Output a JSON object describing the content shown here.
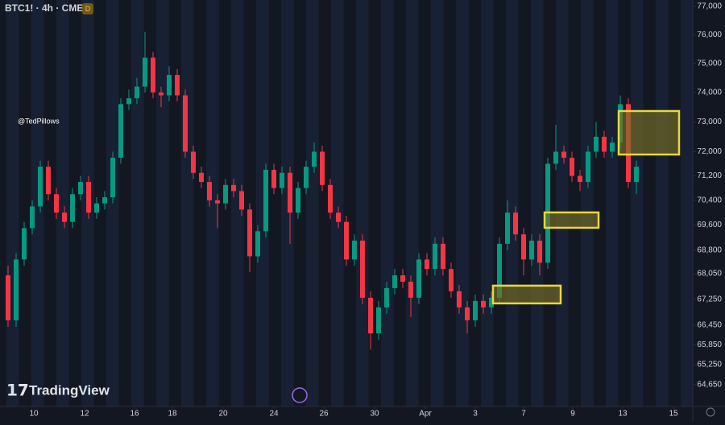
{
  "header": {
    "symbol": "BTC1! · 4h · CME",
    "badge": "D",
    "watermark": "@TedPillows",
    "logo": "TradingView"
  },
  "chart_data": {
    "type": "candlestick",
    "log_scale": true,
    "up_color": "#089981",
    "down_color": "#f23645",
    "ylim": [
      64000,
      77230
    ],
    "yticks": [
      {
        "value": 77000,
        "label": "77,000"
      },
      {
        "value": 76000,
        "label": "76,000"
      },
      {
        "value": 75000,
        "label": "75,000"
      },
      {
        "value": 74000,
        "label": "74,000"
      },
      {
        "value": 73000,
        "label": "73,000"
      },
      {
        "value": 72000,
        "label": "72,000"
      },
      {
        "value": 71200,
        "label": "71,200"
      },
      {
        "value": 70400,
        "label": "70,400"
      },
      {
        "value": 69600,
        "label": "69,600"
      },
      {
        "value": 68800,
        "label": "68,800"
      },
      {
        "value": 68050,
        "label": "68,050"
      },
      {
        "value": 67250,
        "label": "67,250"
      },
      {
        "value": 66450,
        "label": "66,450"
      },
      {
        "value": 65850,
        "label": "65,850"
      },
      {
        "value": 65250,
        "label": "65,250"
      },
      {
        "value": 64650,
        "label": "64,650"
      }
    ],
    "xlim": [
      0,
      172
    ],
    "xticks": [
      {
        "value": 8.4,
        "label": "10"
      },
      {
        "value": 21,
        "label": "12"
      },
      {
        "value": 33.4,
        "label": "16"
      },
      {
        "value": 42.8,
        "label": "18"
      },
      {
        "value": 55.4,
        "label": "20"
      },
      {
        "value": 68,
        "label": "24"
      },
      {
        "value": 80.4,
        "label": "26"
      },
      {
        "value": 93,
        "label": "30"
      },
      {
        "value": 105.6,
        "label": "Apr"
      },
      {
        "value": 118,
        "label": "3"
      },
      {
        "value": 130,
        "label": "7"
      },
      {
        "value": 142.2,
        "label": "9"
      },
      {
        "value": 154.6,
        "label": "13"
      },
      {
        "value": 167.2,
        "label": "15"
      }
    ],
    "x": [
      2,
      4,
      6,
      8,
      10,
      12,
      14,
      16,
      18,
      20,
      22,
      24,
      26,
      28,
      30,
      32,
      34,
      36,
      38,
      40,
      42,
      44,
      46,
      48,
      50,
      52,
      54,
      56,
      58,
      60,
      62,
      64,
      66,
      68,
      70,
      72,
      74,
      76,
      78,
      80,
      82,
      84,
      86,
      88,
      90,
      92,
      94,
      96,
      98,
      100,
      102,
      104,
      106,
      108,
      110,
      112,
      114,
      116,
      118,
      120,
      122,
      124,
      126,
      128,
      130,
      132,
      134,
      136,
      138,
      140,
      142,
      144,
      146,
      148,
      150,
      152,
      154,
      156,
      158
    ],
    "candles": [
      [
        68000,
        68300,
        66400,
        66600
      ],
      [
        66600,
        68700,
        66400,
        68500
      ],
      [
        68500,
        69700,
        68300,
        69500
      ],
      [
        69500,
        70400,
        69300,
        70200
      ],
      [
        70200,
        71700,
        70000,
        71500
      ],
      [
        71500,
        71700,
        70400,
        70600
      ],
      [
        70600,
        70800,
        69800,
        70000
      ],
      [
        70000,
        70200,
        69500,
        69700
      ],
      [
        69700,
        70800,
        69500,
        70600
      ],
      [
        70600,
        71200,
        70400,
        71000
      ],
      [
        71000,
        71200,
        69800,
        70000
      ],
      [
        70000,
        70500,
        69800,
        70300
      ],
      [
        70300,
        70700,
        70100,
        70500
      ],
      [
        70500,
        72000,
        70300,
        71800
      ],
      [
        71800,
        73800,
        71600,
        73600
      ],
      [
        73600,
        74100,
        73400,
        73800
      ],
      [
        73800,
        74500,
        73600,
        74200
      ],
      [
        74200,
        76100,
        74000,
        75200
      ],
      [
        75200,
        75400,
        73800,
        74000
      ],
      [
        74000,
        74200,
        73500,
        73900
      ],
      [
        73900,
        74900,
        73700,
        74600
      ],
      [
        74600,
        74800,
        73700,
        73900
      ],
      [
        73900,
        74100,
        71800,
        72000
      ],
      [
        72000,
        72200,
        71100,
        71300
      ],
      [
        71300,
        71500,
        70800,
        71000
      ],
      [
        71000,
        71200,
        70200,
        70400
      ],
      [
        70400,
        70600,
        69500,
        70300
      ],
      [
        70300,
        71100,
        70100,
        70900
      ],
      [
        70900,
        71100,
        70500,
        70700
      ],
      [
        70700,
        70900,
        69900,
        70100
      ],
      [
        70100,
        70300,
        68100,
        68600
      ],
      [
        68600,
        69600,
        68400,
        69400
      ],
      [
        69400,
        71600,
        69200,
        71400
      ],
      [
        71400,
        71600,
        70600,
        70800
      ],
      [
        70800,
        71500,
        70600,
        71300
      ],
      [
        71300,
        71500,
        69000,
        70000
      ],
      [
        70000,
        71000,
        69800,
        70800
      ],
      [
        70800,
        71700,
        70600,
        71500
      ],
      [
        71500,
        72300,
        71300,
        72000
      ],
      [
        72000,
        72200,
        70700,
        70900
      ],
      [
        70900,
        71100,
        69800,
        70000
      ],
      [
        70000,
        70200,
        69500,
        69700
      ],
      [
        69700,
        69900,
        68300,
        68500
      ],
      [
        68500,
        69300,
        68300,
        69100
      ],
      [
        69100,
        69300,
        67100,
        67300
      ],
      [
        67300,
        67500,
        65700,
        66200
      ],
      [
        66200,
        67200,
        66000,
        67000
      ],
      [
        67000,
        67800,
        66800,
        67600
      ],
      [
        67600,
        68200,
        67400,
        68000
      ],
      [
        68000,
        68200,
        67600,
        67800
      ],
      [
        67800,
        68000,
        66700,
        67300
      ],
      [
        67300,
        68700,
        67100,
        68500
      ],
      [
        68500,
        68700,
        68000,
        68200
      ],
      [
        68200,
        69200,
        68000,
        69000
      ],
      [
        69000,
        69200,
        68000,
        68200
      ],
      [
        68200,
        68400,
        67300,
        67500
      ],
      [
        67500,
        67700,
        66800,
        67000
      ],
      [
        67000,
        67200,
        66200,
        66600
      ],
      [
        66600,
        67400,
        66400,
        67200
      ],
      [
        67200,
        67400,
        66800,
        67000
      ],
      [
        67000,
        67500,
        66800,
        67300
      ],
      [
        67300,
        69200,
        67100,
        69000
      ],
      [
        69000,
        70400,
        68800,
        70000
      ],
      [
        70000,
        70200,
        69100,
        69300
      ],
      [
        69300,
        69500,
        68000,
        68500
      ],
      [
        68500,
        69300,
        68300,
        69100
      ],
      [
        69100,
        69300,
        68000,
        68400
      ],
      [
        68400,
        71800,
        68200,
        71600
      ],
      [
        71600,
        72900,
        71400,
        72000
      ],
      [
        72000,
        72200,
        71600,
        71800
      ],
      [
        71800,
        72000,
        71000,
        71200
      ],
      [
        71200,
        71400,
        70700,
        71000
      ],
      [
        71000,
        72200,
        70800,
        72000
      ],
      [
        72000,
        73000,
        71800,
        72500
      ],
      [
        72500,
        72700,
        71800,
        72000
      ],
      [
        72000,
        72500,
        71800,
        72300
      ],
      [
        72300,
        73900,
        72100,
        73600
      ],
      [
        73600,
        73800,
        70800,
        71000
      ],
      [
        71000,
        71700,
        70600,
        71500
      ]
    ],
    "zones_color": "#e8d838",
    "zones": [
      {
        "x": [
          153.6,
          168.6
        ],
        "y": [
          73366,
          71906
        ]
      },
      {
        "x": [
          135.2,
          148.6
        ],
        "y": [
          70006,
          69512
        ]
      },
      {
        "x": [
          122.4,
          139.2
        ],
        "y": [
          67676,
          67124
        ]
      }
    ]
  }
}
